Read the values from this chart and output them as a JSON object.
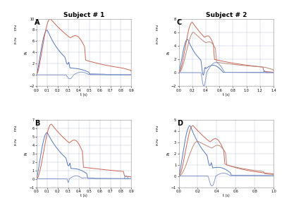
{
  "title_left": "Subject # 1",
  "title_right": "Subject # 2",
  "subplot_labels": [
    "A",
    "B",
    "C",
    "D"
  ],
  "background_color": "#ffffff",
  "grid_color": "#b0b8d0",
  "panels": {
    "A": {
      "xlim": [
        0,
        0.9
      ],
      "ylim": [
        -2,
        10
      ],
      "xticks": [
        0,
        0.1,
        0.2,
        0.3,
        0.4,
        0.5,
        0.6,
        0.7,
        0.8,
        0.9
      ],
      "yticks": [
        -2,
        0,
        2,
        4,
        6,
        8,
        10
      ]
    },
    "B": {
      "xlim": [
        0,
        0.9
      ],
      "ylim": [
        -1,
        7
      ],
      "xticks": [
        0,
        0.1,
        0.2,
        0.3,
        0.4,
        0.5,
        0.6,
        0.7,
        0.8,
        0.9
      ],
      "yticks": [
        -1,
        0,
        1,
        2,
        3,
        4,
        5,
        6,
        7
      ]
    },
    "C": {
      "xlim": [
        0,
        1.4
      ],
      "ylim": [
        -2,
        8
      ],
      "xticks": [
        0,
        0.2,
        0.4,
        0.6,
        0.8,
        1.0,
        1.2,
        1.4
      ],
      "yticks": [
        -2,
        0,
        2,
        4,
        6,
        8
      ]
    },
    "D": {
      "xlim": [
        0,
        1.0
      ],
      "ylim": [
        -1,
        5
      ],
      "xticks": [
        0,
        0.2,
        0.4,
        0.6,
        0.8,
        1.0
      ],
      "yticks": [
        -1,
        0,
        1,
        2,
        3,
        4,
        5
      ]
    }
  },
  "xlabel": "t (s)",
  "line_blue": "#5577bb",
  "line_red": "#cc6655",
  "line_red2": "#bb8877",
  "line_lightblue": "#8899cc"
}
